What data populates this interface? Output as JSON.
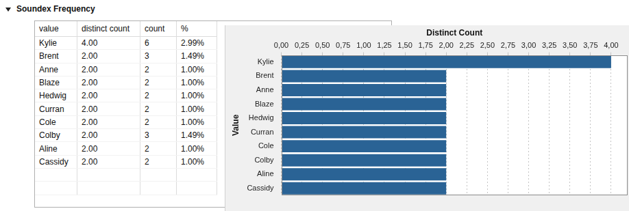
{
  "header": {
    "title": "Soundex Frequency"
  },
  "table": {
    "columns": [
      "value",
      "distinct count",
      "count",
      "%"
    ],
    "rows": [
      [
        "Kylie",
        "4.00",
        "6",
        "2.99%"
      ],
      [
        "Brent",
        "2.00",
        "3",
        "1.49%"
      ],
      [
        "Anne",
        "2.00",
        "2",
        "1.00%"
      ],
      [
        "Blaze",
        "2.00",
        "2",
        "1.00%"
      ],
      [
        "Hedwig",
        "2.00",
        "2",
        "1.00%"
      ],
      [
        "Curran",
        "2.00",
        "2",
        "1.00%"
      ],
      [
        "Cole",
        "2.00",
        "2",
        "1.00%"
      ],
      [
        "Colby",
        "2.00",
        "3",
        "1.49%"
      ],
      [
        "Aline",
        "2.00",
        "2",
        "1.00%"
      ],
      [
        "Cassidy",
        "2.00",
        "2",
        "1.00%"
      ]
    ]
  },
  "chart_data": {
    "type": "bar",
    "orientation": "horizontal",
    "x_label": "Distinct Count",
    "y_label": "Value",
    "categories": [
      "Kylie",
      "Brent",
      "Anne",
      "Blaze",
      "Hedwig",
      "Curran",
      "Cole",
      "Colby",
      "Aline",
      "Cassidy"
    ],
    "values": [
      4,
      2,
      2,
      2,
      2,
      2,
      2,
      2,
      2,
      2
    ],
    "color": "#2a6395",
    "xlim": [
      0,
      4.2
    ],
    "xticks": [
      {
        "value": 0,
        "label": "0,00"
      },
      {
        "value": 0.25,
        "label": "0,25"
      },
      {
        "value": 0.5,
        "label": "0,50"
      },
      {
        "value": 0.75,
        "label": "0,75"
      },
      {
        "value": 1,
        "label": "1,00"
      },
      {
        "value": 1.25,
        "label": "1,25"
      },
      {
        "value": 1.5,
        "label": "1,50"
      },
      {
        "value": 1.75,
        "label": "1,75"
      },
      {
        "value": 2,
        "label": "2,00"
      },
      {
        "value": 2.25,
        "label": "2,25"
      },
      {
        "value": 2.5,
        "label": "2,50"
      },
      {
        "value": 2.75,
        "label": "2,75"
      },
      {
        "value": 3,
        "label": "3,00"
      },
      {
        "value": 3.25,
        "label": "3,25"
      },
      {
        "value": 3.5,
        "label": "3,50"
      },
      {
        "value": 3.75,
        "label": "3,75"
      },
      {
        "value": 4,
        "label": "4,00"
      }
    ],
    "grid": true
  }
}
